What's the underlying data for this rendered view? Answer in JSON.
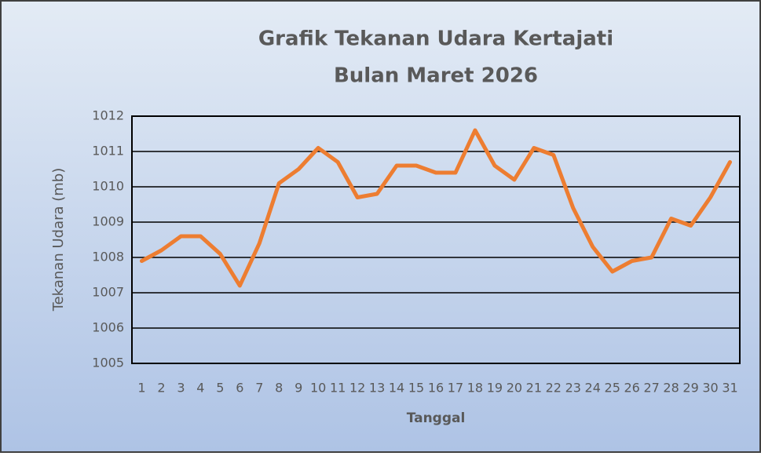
{
  "chart_data": {
    "type": "line",
    "title": [
      "Grafik Tekanan Udara Kertajati",
      "Bulan Maret 2026"
    ],
    "x_label": "Tanggal",
    "y_label": "Tekanan Udara (mb)",
    "categories": [
      "1",
      "2",
      "3",
      "4",
      "5",
      "6",
      "7",
      "8",
      "9",
      "10",
      "11",
      "12",
      "13",
      "14",
      "15",
      "16",
      "17",
      "18",
      "19",
      "20",
      "21",
      "22",
      "23",
      "24",
      "25",
      "26",
      "27",
      "28",
      "29",
      "30",
      "31"
    ],
    "series": [
      {
        "name": "Tekanan Udara",
        "color": "#ed7d31",
        "values": [
          1007.9,
          1008.2,
          1008.6,
          1008.6,
          1008.1,
          1007.2,
          1008.4,
          1010.1,
          1010.5,
          1011.1,
          1010.7,
          1009.7,
          1009.8,
          1010.6,
          1010.6,
          1010.4,
          1010.4,
          1011.6,
          1010.6,
          1010.2,
          1011.1,
          1010.9,
          1009.4,
          1008.3,
          1007.6,
          1007.9,
          1008.0,
          1009.1,
          1008.9,
          1009.7,
          1010.7
        ]
      }
    ],
    "ylim": [
      1005,
      1012
    ],
    "yticks": [
      1005,
      1006,
      1007,
      1008,
      1009,
      1010,
      1011,
      1012
    ],
    "grid": true
  }
}
